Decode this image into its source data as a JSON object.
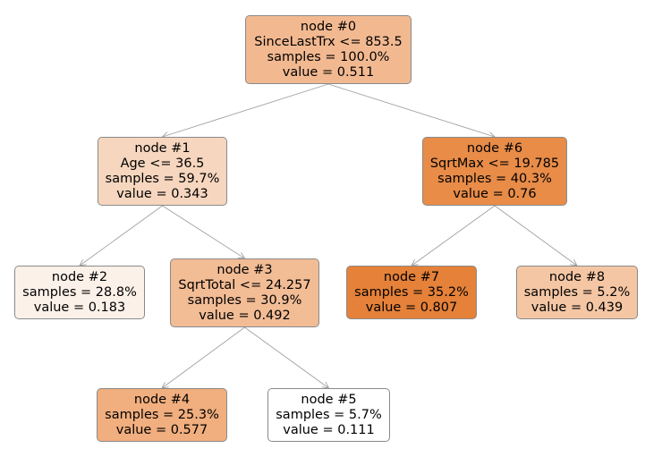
{
  "tree": {
    "nodes": [
      {
        "id": "node-0",
        "title": "node #0",
        "split": "SinceLastTrx <= 853.5",
        "samples": "samples = 100.0%",
        "value": "value = 0.511",
        "fill": "#f2b991"
      },
      {
        "id": "node-1",
        "title": "node #1",
        "split": "Age <= 36.5",
        "samples": "samples = 59.7%",
        "value": "value = 0.343",
        "fill": "#f6d6be"
      },
      {
        "id": "node-2",
        "title": "node #2",
        "split": "",
        "samples": "samples = 28.8%",
        "value": "value = 0.183",
        "fill": "#fcf1e9"
      },
      {
        "id": "node-3",
        "title": "node #3",
        "split": "SqrtTotal <= 24.257",
        "samples": "samples = 30.9%",
        "value": "value = 0.492",
        "fill": "#f2bc95"
      },
      {
        "id": "node-4",
        "title": "node #4",
        "split": "",
        "samples": "samples = 25.3%",
        "value": "value = 0.577",
        "fill": "#f1ae7e"
      },
      {
        "id": "node-5",
        "title": "node #5",
        "split": "",
        "samples": "samples = 5.7%",
        "value": "value = 0.111",
        "fill": "#ffffff"
      },
      {
        "id": "node-6",
        "title": "node #6",
        "split": "SqrtMax <= 19.785",
        "samples": "samples = 40.3%",
        "value": "value = 0.76",
        "fill": "#e88c48"
      },
      {
        "id": "node-7",
        "title": "node #7",
        "split": "",
        "samples": "samples = 35.2%",
        "value": "value = 0.807",
        "fill": "#e58139"
      },
      {
        "id": "node-8",
        "title": "node #8",
        "split": "",
        "samples": "samples = 5.2%",
        "value": "value = 0.439",
        "fill": "#f4c6a4"
      }
    ],
    "edges": [
      [
        "node-0",
        "node-1"
      ],
      [
        "node-0",
        "node-6"
      ],
      [
        "node-1",
        "node-2"
      ],
      [
        "node-1",
        "node-3"
      ],
      [
        "node-3",
        "node-4"
      ],
      [
        "node-3",
        "node-5"
      ],
      [
        "node-6",
        "node-7"
      ],
      [
        "node-6",
        "node-8"
      ]
    ],
    "edge_color": "#a0a0a0"
  }
}
